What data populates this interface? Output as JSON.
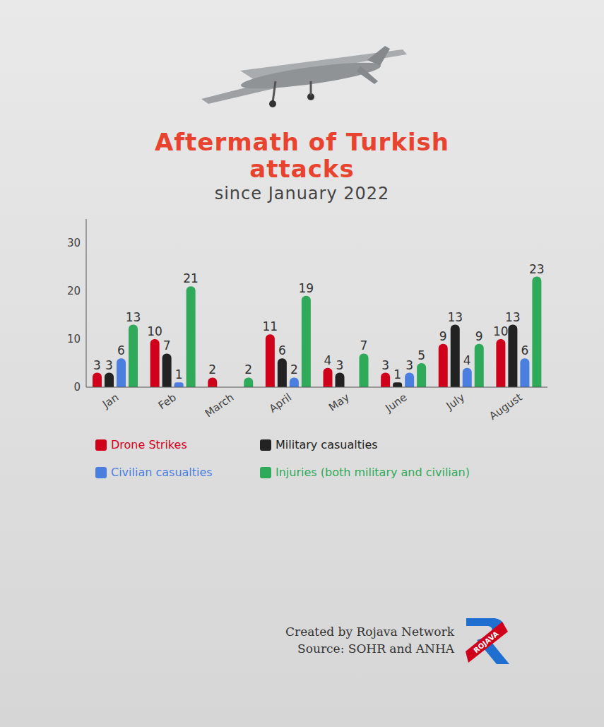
{
  "chart_data": {
    "type": "bar",
    "title": "Aftermath of Turkish attacks",
    "subtitle": "since January 2022",
    "categories": [
      "Jan",
      "Feb",
      "March",
      "April",
      "May",
      "June",
      "July",
      "August"
    ],
    "series": [
      {
        "name": "Drone Strikes",
        "color": "#d0021b",
        "values": [
          3,
          10,
          2,
          11,
          4,
          3,
          9,
          10
        ]
      },
      {
        "name": "Military casualties",
        "color": "#222222",
        "values": [
          3,
          7,
          0,
          6,
          3,
          1,
          13,
          13
        ]
      },
      {
        "name": "Civilian casualties",
        "color": "#4a7fe0",
        "values": [
          6,
          1,
          0,
          2,
          0,
          3,
          4,
          6
        ]
      },
      {
        "name": "Injuries (both military and civilian)",
        "color": "#2eaa5a",
        "values": [
          13,
          21,
          2,
          19,
          7,
          5,
          9,
          23
        ]
      }
    ],
    "ylim": [
      0,
      35
    ],
    "yticks": [
      0,
      10,
      20,
      30
    ],
    "grid": false,
    "data_labels": true,
    "legend": "bottom"
  },
  "footer": {
    "credit": "Created by Rojava Network",
    "source": "Source: SOHR and ANHA"
  },
  "logo": "ROJAVA"
}
